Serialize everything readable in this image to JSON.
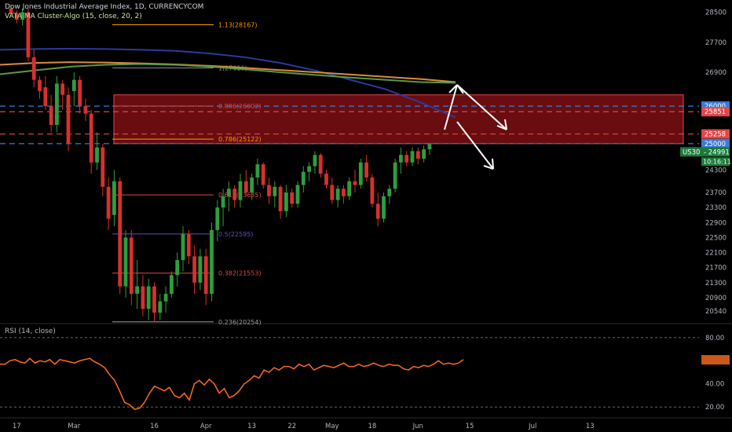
{
  "header": {
    "title": "Dow Jones Industrial Average Index, 1D, CURRENCYCOM",
    "indicator": "VATA MA Cluster-Algo (15, close, 20, 2)",
    "rsi_label": "RSI (14, close)"
  },
  "colors": {
    "background": "#000000",
    "up": "#2e9e3e",
    "down": "#d63030",
    "axis_text": "#b2b5be",
    "zone_fill": "#c0181e",
    "blue_line": "#3a7bd5",
    "red_line": "#e04848",
    "rsi_line": "#ff6a22"
  },
  "chart_data": [
    {
      "type": "candlestick",
      "title": "Dow Jones Industrial Average Index, 1D, CURRENCYCOM",
      "ylim": [
        20250,
        28700
      ],
      "y_ticks": [
        28500,
        27700,
        26900,
        26000,
        25851,
        25258,
        25000,
        24300,
        23700,
        23300,
        22900,
        22500,
        22100,
        21700,
        21300,
        20900,
        20540
      ],
      "x_ticks": [
        "17",
        "Mar",
        "16",
        "Apr",
        "13",
        "22",
        "May",
        "18",
        "Jun",
        "15",
        "Jul",
        "13"
      ],
      "price_labels": [
        {
          "text": "26000",
          "value": 26000,
          "color": "#3a7bd5"
        },
        {
          "text": "25851",
          "value": 25851,
          "color": "#e04848"
        },
        {
          "text": "25258",
          "value": 25258,
          "color": "#e04848"
        },
        {
          "text": "25000",
          "value": 25000,
          "color": "#3a7bd5"
        }
      ],
      "current_price": {
        "symbol": "US30",
        "value": 24991,
        "countdown": "10:16:11"
      },
      "fib_levels": [
        {
          "label": "1.13(28167)",
          "value": 28167,
          "color": "#ff9800"
        },
        {
          "label": "1(27016)",
          "value": 27016,
          "color": "#8a8a8a"
        },
        {
          "label": "0.886(26002)",
          "value": 26002,
          "color": "#e04848"
        },
        {
          "label": "0.786(25122)",
          "value": 25122,
          "color": "#ff9800"
        },
        {
          "label": "0.618(23635)",
          "value": 23635,
          "color": "#e04848"
        },
        {
          "label": "0.5(22595)",
          "value": 22595,
          "color": "#6b4cc2"
        },
        {
          "label": "0.382(21553)",
          "value": 21553,
          "color": "#e04848"
        },
        {
          "label": "0.236(20254)",
          "value": 20254,
          "color": "#9e9e9e"
        }
      ],
      "resistance_zone": [
        25000,
        26300
      ],
      "candles": [
        [
          28600,
          28700,
          28400,
          28450
        ],
        [
          28450,
          28550,
          28200,
          28300
        ],
        [
          28300,
          28600,
          28150,
          28500
        ],
        [
          28500,
          28600,
          27200,
          27300
        ],
        [
          27300,
          27500,
          26500,
          26700
        ],
        [
          26700,
          26800,
          26200,
          26400
        ],
        [
          26500,
          26800,
          25900,
          26000
        ],
        [
          26000,
          26300,
          25300,
          25500
        ],
        [
          25500,
          26800,
          25300,
          26600
        ],
        [
          26600,
          26700,
          25900,
          26300
        ],
        [
          26300,
          26500,
          24800,
          25000
        ],
        [
          26400,
          26900,
          26000,
          26700
        ],
        [
          26700,
          26800,
          25800,
          26000
        ],
        [
          26000,
          26200,
          25600,
          25800
        ],
        [
          25800,
          25900,
          24200,
          24500
        ],
        [
          24500,
          25300,
          24300,
          24900
        ],
        [
          24900,
          25000,
          23600,
          23850
        ],
        [
          23850,
          24100,
          22700,
          23000
        ],
        [
          23100,
          24300,
          22800,
          24000
        ],
        [
          24000,
          24100,
          21000,
          21200
        ],
        [
          21200,
          22700,
          20900,
          22500
        ],
        [
          22500,
          22700,
          20700,
          21000
        ],
        [
          21000,
          21900,
          20600,
          21200
        ],
        [
          21200,
          21500,
          20400,
          20600
        ],
        [
          20600,
          21400,
          20300,
          21200
        ],
        [
          21200,
          21300,
          20250,
          20500
        ],
        [
          20500,
          21000,
          20300,
          20800
        ],
        [
          20800,
          21200,
          20500,
          21000
        ],
        [
          21000,
          21600,
          20900,
          21500
        ],
        [
          21500,
          22100,
          21200,
          21900
        ],
        [
          21900,
          22800,
          21600,
          22600
        ],
        [
          22600,
          22700,
          21800,
          22000
        ],
        [
          22000,
          22300,
          21000,
          21300
        ],
        [
          21300,
          22200,
          21100,
          22000
        ],
        [
          22000,
          22200,
          20700,
          21000
        ],
        [
          21000,
          22900,
          20800,
          22700
        ],
        [
          22700,
          23500,
          22400,
          23300
        ],
        [
          23300,
          23800,
          22800,
          23600
        ],
        [
          23600,
          24000,
          23200,
          23800
        ],
        [
          23800,
          23900,
          23300,
          23500
        ],
        [
          23500,
          24200,
          23300,
          24000
        ],
        [
          24000,
          24300,
          23600,
          23700
        ],
        [
          23700,
          24200,
          23500,
          24100
        ],
        [
          24100,
          24600,
          23900,
          24450
        ],
        [
          24450,
          24500,
          23800,
          23900
        ],
        [
          23900,
          24100,
          23400,
          23600
        ],
        [
          23600,
          24000,
          23300,
          23850
        ],
        [
          23850,
          23900,
          23000,
          23200
        ],
        [
          23200,
          23900,
          23050,
          23700
        ],
        [
          23700,
          23800,
          23300,
          23400
        ],
        [
          23400,
          24000,
          23300,
          23900
        ],
        [
          23900,
          24400,
          23700,
          24250
        ],
        [
          24250,
          24500,
          24000,
          24400
        ],
        [
          24400,
          24800,
          24200,
          24700
        ],
        [
          24700,
          24750,
          24100,
          24200
        ],
        [
          24200,
          24300,
          23800,
          23900
        ],
        [
          23900,
          24100,
          23400,
          23500
        ],
        [
          23500,
          23900,
          23300,
          23800
        ],
        [
          23800,
          23900,
          23400,
          23600
        ],
        [
          23600,
          24100,
          23500,
          24000
        ],
        [
          24000,
          24300,
          23700,
          23900
        ],
        [
          23900,
          24600,
          23800,
          24500
        ],
        [
          24500,
          24700,
          24000,
          24100
        ],
        [
          24100,
          24200,
          23300,
          23400
        ],
        [
          23400,
          23700,
          22800,
          23000
        ],
        [
          23000,
          23700,
          22900,
          23600
        ],
        [
          23600,
          23900,
          23400,
          23800
        ],
        [
          23800,
          24600,
          23700,
          24500
        ],
        [
          24500,
          24900,
          24200,
          24700
        ],
        [
          24700,
          24800,
          24400,
          24500
        ],
        [
          24500,
          24900,
          24400,
          24800
        ],
        [
          24800,
          24900,
          24450,
          24600
        ],
        [
          24600,
          24950,
          24500,
          24850
        ],
        [
          24850,
          25000,
          24700,
          24991
        ]
      ],
      "x_labels_index": [
        1,
        11,
        25,
        34,
        42,
        49,
        56,
        63,
        71,
        80,
        91,
        101
      ],
      "moving_averages": [
        {
          "color": "#2b3a9c",
          "values": [
            27500,
            27520,
            27530,
            27520,
            27500,
            27470,
            27400,
            27300,
            27150,
            26950,
            26700,
            26450,
            26100,
            25700
          ]
        },
        {
          "color": "#d98c3a",
          "values": [
            27100,
            27150,
            27170,
            27160,
            27140,
            27110,
            27070,
            27020,
            26960,
            26900,
            26840,
            26780,
            26720,
            26640
          ]
        },
        {
          "color": "#5a9a44",
          "values": [
            26850,
            26950,
            27050,
            27100,
            27120,
            27100,
            27050,
            26980,
            26900,
            26830,
            26760,
            26700,
            26640,
            26620
          ]
        }
      ]
    },
    {
      "type": "line",
      "title": "RSI (14, close)",
      "ylim": [
        12,
        88
      ],
      "y_ticks": [
        80.0,
        60.0,
        40.0,
        20.0
      ],
      "current": 60.8,
      "series": [
        {
          "values": [
            57,
            57,
            60,
            61,
            59,
            58,
            62,
            58,
            60,
            59,
            61,
            57,
            61,
            60,
            59,
            58,
            60,
            61,
            62,
            59,
            57,
            54,
            48,
            43,
            34,
            24,
            22,
            18,
            19,
            24,
            32,
            38,
            36,
            34,
            37,
            30,
            28,
            32,
            26,
            40,
            43,
            39,
            44,
            40,
            32,
            36,
            28,
            30,
            34,
            40,
            43,
            47,
            45,
            52,
            50,
            54,
            52,
            55,
            55,
            53,
            57,
            55,
            57,
            52,
            54,
            56,
            55,
            54,
            56,
            58,
            55,
            55,
            57,
            55,
            56,
            58,
            56,
            55,
            57,
            56,
            56,
            53,
            52,
            55,
            54,
            56,
            55,
            57,
            60,
            57,
            58,
            57,
            58,
            61
          ]
        }
      ]
    }
  ]
}
